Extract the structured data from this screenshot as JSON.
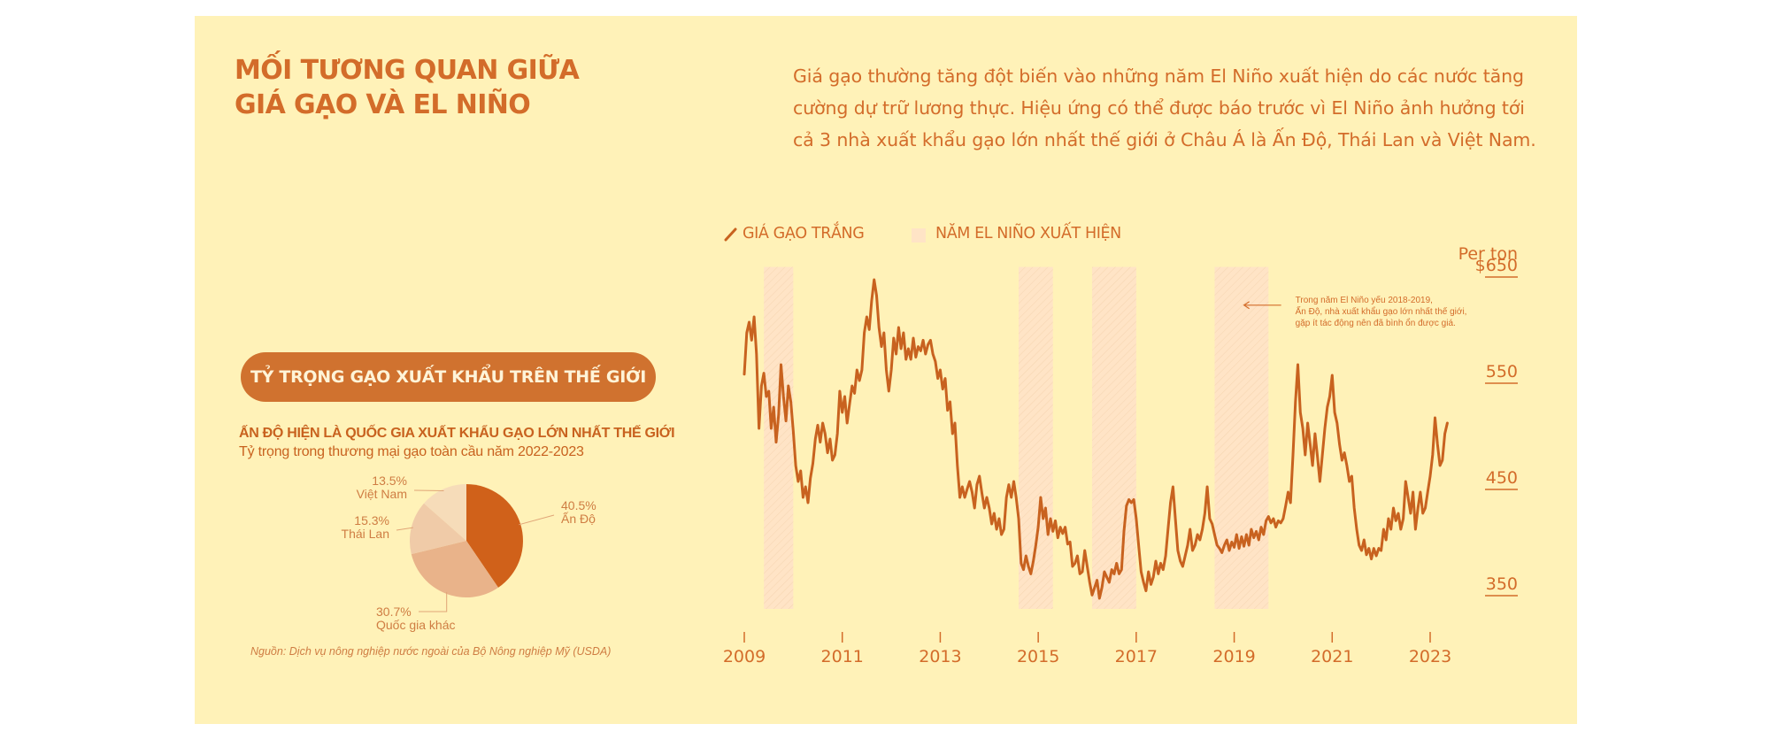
{
  "title": {
    "line1": "MỐI TƯƠNG QUAN GIỮA",
    "line2": "GIÁ GẠO VÀ EL NIÑO"
  },
  "intro": {
    "line1": "Giá gạo thường tăng đột biến vào những năm El Niño xuất hiện do các nước tăng",
    "line2": "cường dự trữ lương thực. Hiệu ứng có thể được báo trước vì El Niño ảnh hưởng tới",
    "line3": "cả 3 nhà xuất khẩu gạo lớn nhất thế giới ở Châu Á là Ấn Độ, Thái Lan và Việt Nam."
  },
  "legend": {
    "line_label": "GIÁ GẠO TRẮNG",
    "swatch_label": "NĂM EL NIÑO XUẤT HIỆN"
  },
  "pie_section": {
    "pill": "TỶ TRỌNG GẠO XUẤT KHẨU TRÊN THẾ GIỚI",
    "heading": "ẤN ĐỘ HIỆN LÀ QUỐC GIA XUẤT KHẨU GẠO LỚN NHẤT THẾ GIỚI",
    "subheading": "Tỷ trọng trong thương mại gạo toàn cầu năm 2022-2023"
  },
  "source": "Nguồn: Dịch vụ nông nghiệp nước ngoài của Bộ Nông nghiệp Mỹ (USDA)",
  "colors": {
    "background": "#fff2b8",
    "accent": "#d36c2a",
    "line": "#c8621f",
    "el_nino_band": "#ffe4c6"
  },
  "chart_data": [
    {
      "type": "pie",
      "title": "Tỷ trọng trong thương mại gạo toàn cầu năm 2022-2023",
      "slices": [
        {
          "label": "Ấn Độ",
          "pct_label": "40.5%",
          "value": 40.5,
          "color": "#d0611a"
        },
        {
          "label": "Quốc gia khác",
          "pct_label": "30.7%",
          "value": 30.7,
          "color": "#e9b38a"
        },
        {
          "label": "Thái Lan",
          "pct_label": "15.3%",
          "value": 15.3,
          "color": "#f0cba8"
        },
        {
          "label": "Việt Nam",
          "pct_label": "13.5%",
          "value": 13.5,
          "color": "#f6dcb9"
        }
      ]
    },
    {
      "type": "line",
      "title": "Giá gạo trắng",
      "series_name": "GIÁ GẠO TRẮNG",
      "ylabel": "Per ton",
      "ylim": [
        335,
        657
      ],
      "xlim": [
        2009,
        2023.6
      ],
      "y_ticks": [
        {
          "value": 650,
          "label": "$650"
        },
        {
          "value": 550,
          "label": "550"
        },
        {
          "value": 450,
          "label": "450"
        },
        {
          "value": 350,
          "label": "350"
        }
      ],
      "x_ticks": [
        {
          "value": 2009,
          "label": "2009"
        },
        {
          "value": 2011,
          "label": "2011"
        },
        {
          "value": 2013,
          "label": "2013"
        },
        {
          "value": 2015,
          "label": "2015"
        },
        {
          "value": 2017,
          "label": "2017"
        },
        {
          "value": 2019,
          "label": "2019"
        },
        {
          "value": 2021,
          "label": "2021"
        },
        {
          "value": 2023,
          "label": "2023"
        }
      ],
      "el_nino_periods": [
        [
          2009.4,
          2010.0
        ],
        [
          2014.6,
          2015.3
        ],
        [
          2016.1,
          2017.0
        ],
        [
          2018.6,
          2019.7
        ]
      ],
      "annotation": {
        "lines": [
          "Trong năm El Niño yếu 2018-2019,",
          "Ấn Độ, nhà xuất khẩu gạo lớn nhất thế giới,",
          "gặp ít tác động nên đã bình ổn được giá."
        ],
        "year": 2019.2,
        "value": 621
      },
      "points": [
        [
          2009.0,
          556
        ],
        [
          2009.05,
          595
        ],
        [
          2009.1,
          605
        ],
        [
          2009.15,
          588
        ],
        [
          2009.2,
          610
        ],
        [
          2009.25,
          575
        ],
        [
          2009.3,
          505
        ],
        [
          2009.35,
          545
        ],
        [
          2009.4,
          557
        ],
        [
          2009.45,
          535
        ],
        [
          2009.5,
          540
        ],
        [
          2009.55,
          505
        ],
        [
          2009.6,
          525
        ],
        [
          2009.65,
          492
        ],
        [
          2009.7,
          518
        ],
        [
          2009.75,
          565
        ],
        [
          2009.8,
          535
        ],
        [
          2009.85,
          512
        ],
        [
          2009.9,
          545
        ],
        [
          2009.95,
          530
        ],
        [
          2010.0,
          502
        ],
        [
          2010.05,
          470
        ],
        [
          2010.1,
          455
        ],
        [
          2010.15,
          465
        ],
        [
          2010.2,
          440
        ],
        [
          2010.25,
          450
        ],
        [
          2010.3,
          435
        ],
        [
          2010.35,
          458
        ],
        [
          2010.4,
          472
        ],
        [
          2010.45,
          495
        ],
        [
          2010.5,
          508
        ],
        [
          2010.55,
          492
        ],
        [
          2010.6,
          510
        ],
        [
          2010.65,
          500
        ],
        [
          2010.7,
          482
        ],
        [
          2010.75,
          495
        ],
        [
          2010.8,
          475
        ],
        [
          2010.85,
          480
        ],
        [
          2010.9,
          500
        ],
        [
          2010.95,
          540
        ],
        [
          2011.0,
          520
        ],
        [
          2011.05,
          535
        ],
        [
          2011.1,
          510
        ],
        [
          2011.15,
          528
        ],
        [
          2011.2,
          545
        ],
        [
          2011.25,
          538
        ],
        [
          2011.3,
          560
        ],
        [
          2011.35,
          550
        ],
        [
          2011.4,
          560
        ],
        [
          2011.45,
          595
        ],
        [
          2011.5,
          610
        ],
        [
          2011.55,
          598
        ],
        [
          2011.6,
          625
        ],
        [
          2011.65,
          645
        ],
        [
          2011.7,
          630
        ],
        [
          2011.75,
          600
        ],
        [
          2011.8,
          582
        ],
        [
          2011.85,
          595
        ],
        [
          2011.9,
          560
        ],
        [
          2011.95,
          540
        ],
        [
          2012.0,
          560
        ],
        [
          2012.05,
          590
        ],
        [
          2012.1,
          575
        ],
        [
          2012.15,
          600
        ],
        [
          2012.2,
          580
        ],
        [
          2012.25,
          595
        ],
        [
          2012.3,
          570
        ],
        [
          2012.35,
          580
        ],
        [
          2012.4,
          570
        ],
        [
          2012.45,
          590
        ],
        [
          2012.5,
          572
        ],
        [
          2012.55,
          582
        ],
        [
          2012.6,
          578
        ],
        [
          2012.65,
          588
        ],
        [
          2012.7,
          575
        ],
        [
          2012.75,
          584
        ],
        [
          2012.8,
          588
        ],
        [
          2012.85,
          575
        ],
        [
          2012.9,
          568
        ],
        [
          2012.95,
          552
        ],
        [
          2013.0,
          560
        ],
        [
          2013.05,
          542
        ],
        [
          2013.1,
          552
        ],
        [
          2013.15,
          522
        ],
        [
          2013.2,
          530
        ],
        [
          2013.25,
          500
        ],
        [
          2013.3,
          510
        ],
        [
          2013.35,
          470
        ],
        [
          2013.4,
          440
        ],
        [
          2013.45,
          450
        ],
        [
          2013.5,
          440
        ],
        [
          2013.55,
          448
        ],
        [
          2013.6,
          455
        ],
        [
          2013.65,
          445
        ],
        [
          2013.7,
          430
        ],
        [
          2013.75,
          452
        ],
        [
          2013.8,
          460
        ],
        [
          2013.85,
          444
        ],
        [
          2013.9,
          430
        ],
        [
          2013.95,
          440
        ],
        [
          2014.0,
          430
        ],
        [
          2014.05,
          415
        ],
        [
          2014.1,
          425
        ],
        [
          2014.15,
          410
        ],
        [
          2014.2,
          420
        ],
        [
          2014.25,
          405
        ],
        [
          2014.3,
          410
        ],
        [
          2014.35,
          440
        ],
        [
          2014.4,
          452
        ],
        [
          2014.45,
          440
        ],
        [
          2014.5,
          455
        ],
        [
          2014.55,
          440
        ],
        [
          2014.6,
          420
        ],
        [
          2014.65,
          378
        ],
        [
          2014.7,
          372
        ],
        [
          2014.75,
          385
        ],
        [
          2014.8,
          375
        ],
        [
          2014.85,
          368
        ],
        [
          2014.9,
          380
        ],
        [
          2014.95,
          395
        ],
        [
          2015.0,
          412
        ],
        [
          2015.05,
          440
        ],
        [
          2015.1,
          420
        ],
        [
          2015.15,
          430
        ],
        [
          2015.2,
          405
        ],
        [
          2015.25,
          420
        ],
        [
          2015.3,
          408
        ],
        [
          2015.35,
          418
        ],
        [
          2015.4,
          402
        ],
        [
          2015.45,
          412
        ],
        [
          2015.5,
          406
        ],
        [
          2015.55,
          412
        ],
        [
          2015.6,
          396
        ],
        [
          2015.65,
          398
        ],
        [
          2015.7,
          375
        ],
        [
          2015.75,
          378
        ],
        [
          2015.8,
          385
        ],
        [
          2015.85,
          368
        ],
        [
          2015.9,
          370
        ],
        [
          2015.95,
          390
        ],
        [
          2016.0,
          375
        ],
        [
          2016.05,
          360
        ],
        [
          2016.1,
          348
        ],
        [
          2016.15,
          355
        ],
        [
          2016.2,
          362
        ],
        [
          2016.25,
          345
        ],
        [
          2016.3,
          355
        ],
        [
          2016.35,
          370
        ],
        [
          2016.4,
          365
        ],
        [
          2016.45,
          360
        ],
        [
          2016.5,
          372
        ],
        [
          2016.55,
          368
        ],
        [
          2016.6,
          378
        ],
        [
          2016.65,
          368
        ],
        [
          2016.7,
          372
        ],
        [
          2016.75,
          408
        ],
        [
          2016.8,
          432
        ],
        [
          2016.85,
          438
        ],
        [
          2016.9,
          435
        ],
        [
          2016.95,
          438
        ],
        [
          2017.0,
          420
        ],
        [
          2017.05,
          395
        ],
        [
          2017.1,
          370
        ],
        [
          2017.15,
          360
        ],
        [
          2017.2,
          352
        ],
        [
          2017.25,
          370
        ],
        [
          2017.3,
          358
        ],
        [
          2017.35,
          365
        ],
        [
          2017.4,
          380
        ],
        [
          2017.45,
          368
        ],
        [
          2017.5,
          378
        ],
        [
          2017.55,
          372
        ],
        [
          2017.6,
          385
        ],
        [
          2017.65,
          410
        ],
        [
          2017.7,
          435
        ],
        [
          2017.75,
          450
        ],
        [
          2017.8,
          420
        ],
        [
          2017.85,
          390
        ],
        [
          2017.9,
          380
        ],
        [
          2017.95,
          375
        ],
        [
          2018.0,
          385
        ],
        [
          2018.05,
          395
        ],
        [
          2018.1,
          410
        ],
        [
          2018.15,
          390
        ],
        [
          2018.2,
          395
        ],
        [
          2018.25,
          405
        ],
        [
          2018.3,
          400
        ],
        [
          2018.35,
          410
        ],
        [
          2018.4,
          425
        ],
        [
          2018.45,
          450
        ],
        [
          2018.5,
          420
        ],
        [
          2018.55,
          415
        ],
        [
          2018.6,
          405
        ],
        [
          2018.65,
          395
        ],
        [
          2018.7,
          392
        ],
        [
          2018.75,
          388
        ],
        [
          2018.8,
          395
        ],
        [
          2018.85,
          400
        ],
        [
          2018.9,
          390
        ],
        [
          2018.95,
          398
        ],
        [
          2019.0,
          393
        ],
        [
          2019.05,
          405
        ],
        [
          2019.1,
          392
        ],
        [
          2019.15,
          403
        ],
        [
          2019.2,
          394
        ],
        [
          2019.25,
          405
        ],
        [
          2019.3,
          395
        ],
        [
          2019.35,
          410
        ],
        [
          2019.4,
          402
        ],
        [
          2019.45,
          408
        ],
        [
          2019.5,
          400
        ],
        [
          2019.55,
          412
        ],
        [
          2019.6,
          405
        ],
        [
          2019.65,
          418
        ],
        [
          2019.7,
          422
        ],
        [
          2019.75,
          416
        ],
        [
          2019.8,
          420
        ],
        [
          2019.85,
          412
        ],
        [
          2019.9,
          418
        ],
        [
          2019.95,
          416
        ],
        [
          2020.0,
          420
        ],
        [
          2020.05,
          432
        ],
        [
          2020.1,
          445
        ],
        [
          2020.15,
          435
        ],
        [
          2020.2,
          480
        ],
        [
          2020.25,
          530
        ],
        [
          2020.3,
          565
        ],
        [
          2020.35,
          520
        ],
        [
          2020.4,
          505
        ],
        [
          2020.45,
          480
        ],
        [
          2020.5,
          510
        ],
        [
          2020.55,
          490
        ],
        [
          2020.6,
          470
        ],
        [
          2020.65,
          500
        ],
        [
          2020.7,
          478
        ],
        [
          2020.75,
          455
        ],
        [
          2020.8,
          480
        ],
        [
          2020.85,
          505
        ],
        [
          2020.9,
          525
        ],
        [
          2020.95,
          535
        ],
        [
          2021.0,
          555
        ],
        [
          2021.05,
          520
        ],
        [
          2021.1,
          510
        ],
        [
          2021.15,
          490
        ],
        [
          2021.2,
          475
        ],
        [
          2021.25,
          482
        ],
        [
          2021.3,
          470
        ],
        [
          2021.35,
          455
        ],
        [
          2021.4,
          460
        ],
        [
          2021.45,
          430
        ],
        [
          2021.5,
          410
        ],
        [
          2021.55,
          395
        ],
        [
          2021.6,
          390
        ],
        [
          2021.65,
          400
        ],
        [
          2021.7,
          386
        ],
        [
          2021.75,
          392
        ],
        [
          2021.8,
          382
        ],
        [
          2021.85,
          392
        ],
        [
          2021.9,
          385
        ],
        [
          2021.95,
          392
        ],
        [
          2022.0,
          390
        ],
        [
          2022.05,
          410
        ],
        [
          2022.1,
          400
        ],
        [
          2022.15,
          420
        ],
        [
          2022.2,
          410
        ],
        [
          2022.25,
          430
        ],
        [
          2022.3,
          418
        ],
        [
          2022.35,
          425
        ],
        [
          2022.4,
          410
        ],
        [
          2022.45,
          420
        ],
        [
          2022.5,
          455
        ],
        [
          2022.55,
          440
        ],
        [
          2022.6,
          425
        ],
        [
          2022.65,
          445
        ],
        [
          2022.7,
          410
        ],
        [
          2022.75,
          430
        ],
        [
          2022.8,
          445
        ],
        [
          2022.85,
          425
        ],
        [
          2022.9,
          430
        ],
        [
          2022.95,
          445
        ],
        [
          2023.0,
          460
        ],
        [
          2023.05,
          480
        ],
        [
          2023.1,
          515
        ],
        [
          2023.15,
          490
        ],
        [
          2023.2,
          470
        ],
        [
          2023.25,
          475
        ],
        [
          2023.3,
          500
        ],
        [
          2023.35,
          510
        ]
      ]
    }
  ]
}
